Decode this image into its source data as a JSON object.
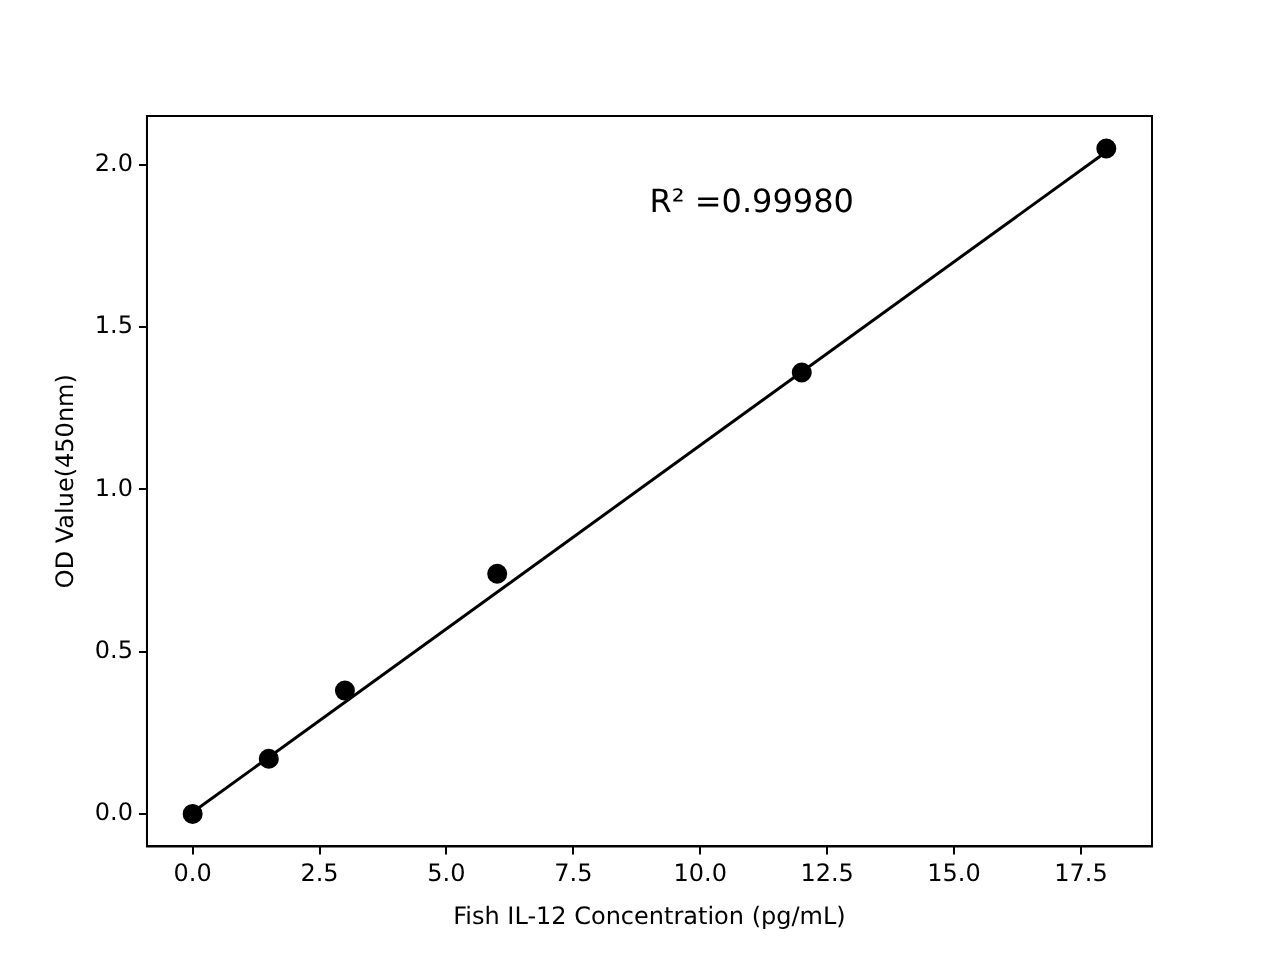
{
  "chart_data": {
    "type": "scatter",
    "xlabel": "Fish IL-12 Concentration (pg/mL)",
    "ylabel": "OD Value(450nm)",
    "annotations": [
      "R² =0.99980"
    ],
    "series": [
      {
        "color": "#000000",
        "x": [
          0,
          1.5,
          3,
          6,
          12,
          18
        ],
        "values": [
          0.0,
          0.17,
          0.38,
          0.74,
          1.36,
          2.05
        ]
      },
      {
        "type": "line",
        "marker": "none",
        "color": "#000000",
        "x": [
          0,
          18
        ],
        "values": [
          0.005,
          2.04
        ]
      }
    ],
    "marker": "circle",
    "grid": false,
    "legend": false,
    "xlim": [
      -0.9,
      18.9
    ],
    "xticks": [
      {
        "value": 0,
        "label": "0.0"
      },
      2.5,
      {
        "value": 5,
        "label": "5.0"
      },
      7.5,
      {
        "value": 10,
        "label": "10.0"
      },
      12.5,
      {
        "value": 15,
        "label": "15.0"
      },
      17.5
    ],
    "ylim": [
      -0.1,
      2.15
    ],
    "yticks": [
      {
        "value": 0,
        "label": "0.0"
      },
      0.5,
      {
        "value": 1,
        "label": "1.0"
      },
      1.5,
      {
        "value": 2,
        "label": "2.0"
      }
    ]
  }
}
